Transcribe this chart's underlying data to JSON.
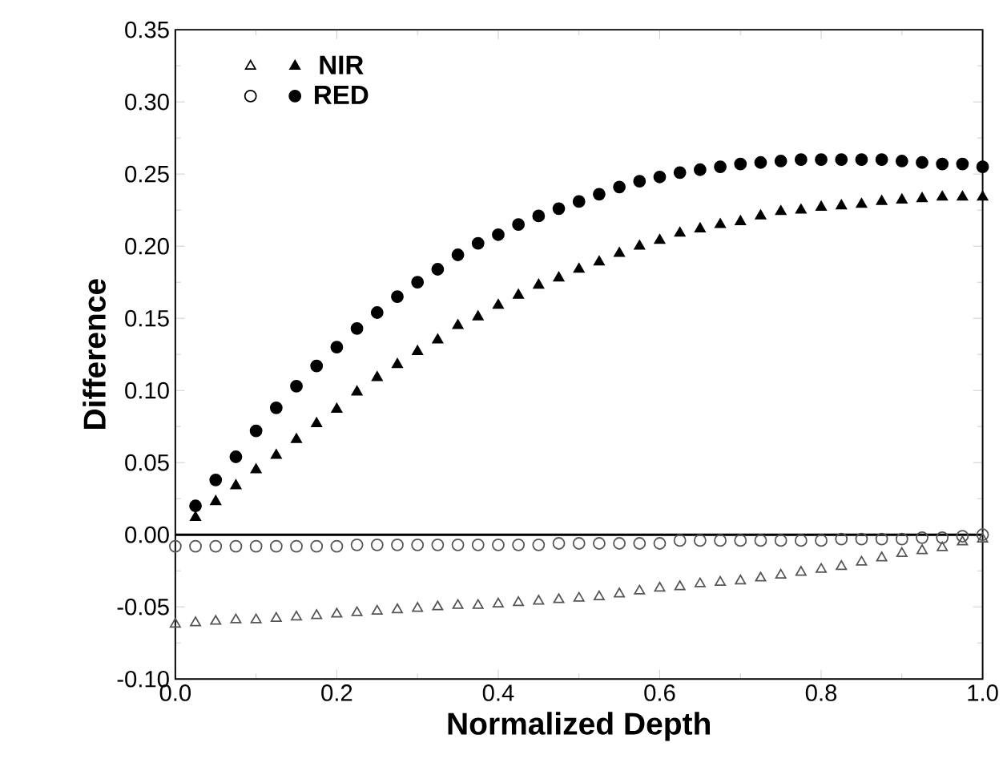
{
  "chart_data": {
    "type": "scatter",
    "xlabel": "Normalized Depth",
    "ylabel": "Difference",
    "xlim": [
      0,
      1
    ],
    "ylim": [
      -0.1,
      0.35
    ],
    "xticks": [
      {
        "value": 0,
        "label": "0.0"
      },
      {
        "value": 0.2,
        "label": "0.2"
      },
      {
        "value": 0.4,
        "label": "0.4"
      },
      {
        "value": 0.6,
        "label": "0.6"
      },
      {
        "value": 0.8,
        "label": "0.8"
      },
      {
        "value": 1,
        "label": "1.0"
      }
    ],
    "yticks": [
      {
        "value": -0.1,
        "label": "-0.10"
      },
      {
        "value": -0.05,
        "label": "-0.05"
      },
      {
        "value": 0,
        "label": "0.00"
      },
      {
        "value": 0.05,
        "label": "0.05"
      },
      {
        "value": 0.1,
        "label": "0.10"
      },
      {
        "value": 0.15,
        "label": "0.15"
      },
      {
        "value": 0.2,
        "label": "0.20"
      },
      {
        "value": 0.25,
        "label": "0.25"
      },
      {
        "value": 0.3,
        "label": "0.30"
      },
      {
        "value": 0.35,
        "label": "0.35"
      }
    ],
    "legend": "top left",
    "grid": false,
    "ref_lines": [
      {
        "axis": "y",
        "value": 0,
        "color": "#000000",
        "line_style": "solid"
      }
    ],
    "series": [
      {
        "name": "NIR",
        "color": "#000000",
        "marker": "triangle",
        "x": [
          0.025,
          0.05,
          0.075,
          0.1,
          0.125,
          0.15,
          0.175,
          0.2,
          0.225,
          0.25,
          0.275,
          0.3,
          0.325,
          0.35,
          0.375,
          0.4,
          0.425,
          0.45,
          0.475,
          0.5,
          0.525,
          0.55,
          0.575,
          0.6,
          0.625,
          0.65,
          0.675,
          0.7,
          0.725,
          0.75,
          0.775,
          0.8,
          0.825,
          0.85,
          0.875,
          0.9,
          0.925,
          0.95,
          0.975,
          1.0
        ],
        "values": [
          0.012,
          0.023,
          0.034,
          0.045,
          0.055,
          0.066,
          0.077,
          0.087,
          0.099,
          0.109,
          0.118,
          0.127,
          0.135,
          0.145,
          0.151,
          0.159,
          0.166,
          0.173,
          0.178,
          0.184,
          0.189,
          0.195,
          0.2,
          0.204,
          0.209,
          0.212,
          0.215,
          0.217,
          0.221,
          0.224,
          0.225,
          0.227,
          0.228,
          0.229,
          0.231,
          0.232,
          0.233,
          0.234,
          0.234,
          0.234
        ]
      },
      {
        "name": "RED",
        "color": "#000000",
        "marker": "circle",
        "x": [
          0.025,
          0.05,
          0.075,
          0.1,
          0.125,
          0.15,
          0.175,
          0.2,
          0.225,
          0.25,
          0.275,
          0.3,
          0.325,
          0.35,
          0.375,
          0.4,
          0.425,
          0.45,
          0.475,
          0.5,
          0.525,
          0.55,
          0.575,
          0.6,
          0.625,
          0.65,
          0.675,
          0.7,
          0.725,
          0.75,
          0.775,
          0.8,
          0.825,
          0.85,
          0.875,
          0.9,
          0.925,
          0.95,
          0.975,
          1.0
        ],
        "values": [
          0.02,
          0.038,
          0.054,
          0.072,
          0.088,
          0.103,
          0.117,
          0.13,
          0.143,
          0.154,
          0.165,
          0.175,
          0.184,
          0.194,
          0.202,
          0.208,
          0.215,
          0.221,
          0.226,
          0.231,
          0.236,
          0.241,
          0.245,
          0.248,
          0.251,
          0.253,
          0.255,
          0.257,
          0.258,
          0.259,
          0.26,
          0.26,
          0.26,
          0.26,
          0.26,
          0.259,
          0.258,
          0.257,
          0.257,
          0.255
        ]
      },
      {
        "color": "#555555",
        "marker": "triangle",
        "x": [
          0,
          0.025,
          0.05,
          0.075,
          0.1,
          0.125,
          0.15,
          0.175,
          0.2,
          0.225,
          0.25,
          0.275,
          0.3,
          0.325,
          0.35,
          0.375,
          0.4,
          0.425,
          0.45,
          0.475,
          0.5,
          0.525,
          0.55,
          0.575,
          0.6,
          0.625,
          0.65,
          0.675,
          0.7,
          0.725,
          0.75,
          0.775,
          0.8,
          0.825,
          0.85,
          0.875,
          0.9,
          0.925,
          0.95,
          0.975,
          1.0
        ],
        "values": [
          -0.062,
          -0.061,
          -0.06,
          -0.059,
          -0.059,
          -0.058,
          -0.057,
          -0.056,
          -0.055,
          -0.054,
          -0.053,
          -0.052,
          -0.051,
          -0.05,
          -0.049,
          -0.049,
          -0.048,
          -0.047,
          -0.046,
          -0.045,
          -0.044,
          -0.043,
          -0.041,
          -0.039,
          -0.037,
          -0.036,
          -0.034,
          -0.033,
          -0.032,
          -0.03,
          -0.028,
          -0.026,
          -0.024,
          -0.022,
          -0.019,
          -0.016,
          -0.013,
          -0.011,
          -0.009,
          -0.005,
          -0.003
        ]
      },
      {
        "color": "#555555",
        "marker": "circle",
        "x": [
          0,
          0.025,
          0.05,
          0.075,
          0.1,
          0.125,
          0.15,
          0.175,
          0.2,
          0.225,
          0.25,
          0.275,
          0.3,
          0.325,
          0.35,
          0.375,
          0.4,
          0.425,
          0.45,
          0.475,
          0.5,
          0.525,
          0.55,
          0.575,
          0.6,
          0.625,
          0.65,
          0.675,
          0.7,
          0.725,
          0.75,
          0.775,
          0.8,
          0.825,
          0.85,
          0.875,
          0.9,
          0.925,
          0.95,
          0.975,
          1.0
        ],
        "values": [
          -0.008,
          -0.008,
          -0.008,
          -0.008,
          -0.008,
          -0.008,
          -0.008,
          -0.008,
          -0.008,
          -0.007,
          -0.007,
          -0.007,
          -0.007,
          -0.007,
          -0.007,
          -0.007,
          -0.007,
          -0.007,
          -0.007,
          -0.006,
          -0.006,
          -0.006,
          -0.006,
          -0.006,
          -0.006,
          -0.004,
          -0.004,
          -0.004,
          -0.004,
          -0.004,
          -0.004,
          -0.004,
          -0.004,
          -0.003,
          -0.003,
          -0.003,
          -0.003,
          -0.002,
          -0.002,
          -0.001,
          0.0
        ]
      }
    ]
  }
}
